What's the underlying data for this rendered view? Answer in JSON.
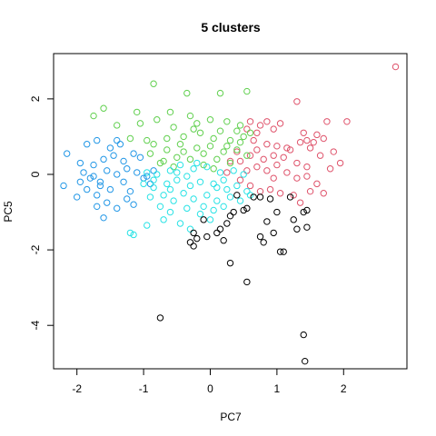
{
  "chart_data": {
    "type": "scatter",
    "title": "5  clusters",
    "xlabel": "PC7",
    "ylabel": "PC5",
    "xlim": [
      -2.35,
      2.95
    ],
    "ylim": [
      -5.15,
      3.2
    ],
    "xticks": [
      -2,
      -1,
      0,
      1,
      2
    ],
    "yticks": [
      -4,
      -2,
      0,
      2
    ],
    "grid": false,
    "legend": "none",
    "marker": "open-circle",
    "series": [
      {
        "color": "#df536b",
        "points": [
          [
            2.78,
            2.85
          ],
          [
            2.05,
            1.4
          ],
          [
            1.75,
            1.4
          ],
          [
            1.3,
            1.93
          ],
          [
            1.45,
            0.9
          ],
          [
            1.6,
            1.05
          ],
          [
            1.4,
            1.1
          ],
          [
            1.05,
            1.35
          ],
          [
            0.95,
            1.2
          ],
          [
            0.85,
            1.4
          ],
          [
            0.75,
            1.3
          ],
          [
            0.6,
            1.4
          ],
          [
            0.55,
            1.2
          ],
          [
            0.7,
            1.1
          ],
          [
            0.85,
            0.8
          ],
          [
            1.0,
            0.75
          ],
          [
            1.2,
            0.65
          ],
          [
            1.35,
            0.85
          ],
          [
            1.5,
            0.7
          ],
          [
            1.7,
            0.95
          ],
          [
            1.85,
            0.6
          ],
          [
            1.95,
            0.3
          ],
          [
            1.65,
            0.5
          ],
          [
            1.45,
            0.2
          ],
          [
            1.3,
            0.3
          ],
          [
            1.1,
            0.45
          ],
          [
            0.95,
            0.5
          ],
          [
            0.8,
            0.4
          ],
          [
            0.7,
            0.65
          ],
          [
            0.6,
            0.5
          ],
          [
            0.45,
            0.35
          ],
          [
            0.3,
            0.35
          ],
          [
            0.4,
            0.6
          ],
          [
            0.55,
            0.1
          ],
          [
            0.7,
            0.2
          ],
          [
            0.85,
            0.1
          ],
          [
            1.0,
            0.25
          ],
          [
            1.15,
            0.05
          ],
          [
            1.3,
            -0.1
          ],
          [
            1.45,
            -0.05
          ],
          [
            1.6,
            -0.25
          ],
          [
            1.7,
            -0.5
          ],
          [
            1.5,
            -0.45
          ],
          [
            1.25,
            -0.55
          ],
          [
            1.05,
            -0.5
          ],
          [
            0.9,
            -0.4
          ],
          [
            0.75,
            -0.45
          ],
          [
            0.6,
            -0.3
          ],
          [
            0.45,
            -0.15
          ],
          [
            1.35,
            -0.75
          ],
          [
            1.15,
            0.7
          ],
          [
            0.65,
            0.9
          ],
          [
            0.25,
            0.05
          ],
          [
            1.8,
            0.15
          ],
          [
            1.55,
            0.85
          ],
          [
            0.95,
            -0.1
          ]
        ]
      },
      {
        "color": "#61d04f",
        "points": [
          [
            -0.85,
            2.4
          ],
          [
            -0.35,
            2.15
          ],
          [
            0.15,
            2.15
          ],
          [
            0.55,
            2.2
          ],
          [
            -1.6,
            1.75
          ],
          [
            -1.75,
            1.55
          ],
          [
            -1.1,
            1.65
          ],
          [
            -0.6,
            1.65
          ],
          [
            -1.4,
            1.3
          ],
          [
            -1.05,
            1.35
          ],
          [
            -0.8,
            1.45
          ],
          [
            -0.55,
            1.25
          ],
          [
            -0.3,
            1.55
          ],
          [
            -0.2,
            1.35
          ],
          [
            0.0,
            1.45
          ],
          [
            0.25,
            1.4
          ],
          [
            0.45,
            1.3
          ],
          [
            0.6,
            1.1
          ],
          [
            -0.95,
            0.9
          ],
          [
            -0.65,
            0.95
          ],
          [
            -0.4,
            1.0
          ],
          [
            -0.15,
            1.1
          ],
          [
            0.05,
            0.95
          ],
          [
            0.3,
            0.9
          ],
          [
            0.45,
            0.85
          ],
          [
            -0.9,
            0.55
          ],
          [
            -0.65,
            0.65
          ],
          [
            -0.45,
            0.8
          ],
          [
            -0.2,
            0.7
          ],
          [
            0.0,
            0.75
          ],
          [
            0.2,
            0.6
          ],
          [
            0.4,
            0.65
          ],
          [
            -0.7,
            0.35
          ],
          [
            -0.5,
            0.45
          ],
          [
            -0.3,
            0.4
          ],
          [
            -0.1,
            0.55
          ],
          [
            0.1,
            0.4
          ],
          [
            0.3,
            0.3
          ],
          [
            -0.85,
            0.8
          ],
          [
            -0.75,
            0.3
          ],
          [
            -0.25,
            1.2
          ],
          [
            0.15,
            1.15
          ],
          [
            -0.55,
            0.2
          ],
          [
            0.4,
            1.15
          ],
          [
            -0.1,
            0.25
          ],
          [
            0.25,
            0.75
          ],
          [
            -1.2,
            0.95
          ],
          [
            0.55,
            0.5
          ],
          [
            -0.4,
            0.6
          ],
          [
            0.05,
            0.15
          ],
          [
            0.5,
            1.0
          ]
        ]
      },
      {
        "color": "#2297e6",
        "points": [
          [
            -2.15,
            0.55
          ],
          [
            -1.95,
            0.3
          ],
          [
            -1.85,
            0.8
          ],
          [
            -1.7,
            0.9
          ],
          [
            -1.4,
            0.9
          ],
          [
            -1.35,
            0.8
          ],
          [
            -1.9,
            0.05
          ],
          [
            -1.75,
            0.25
          ],
          [
            -1.6,
            0.4
          ],
          [
            -1.45,
            0.5
          ],
          [
            -1.3,
            0.35
          ],
          [
            -1.15,
            0.55
          ],
          [
            -1.05,
            0.45
          ],
          [
            -1.8,
            -0.1
          ],
          [
            -1.65,
            -0.2
          ],
          [
            -1.55,
            0.1
          ],
          [
            -1.4,
            0.0
          ],
          [
            -1.25,
            0.15
          ],
          [
            -1.1,
            0.05
          ],
          [
            -1.0,
            -0.1
          ],
          [
            -0.95,
            -0.05
          ],
          [
            -0.85,
            0.1
          ],
          [
            -2.2,
            -0.3
          ],
          [
            -2.0,
            -0.6
          ],
          [
            -1.85,
            -0.4
          ],
          [
            -1.7,
            -0.55
          ],
          [
            -1.55,
            -0.75
          ],
          [
            -1.4,
            -0.9
          ],
          [
            -1.25,
            -0.65
          ],
          [
            -1.15,
            -0.8
          ],
          [
            -1.65,
            -0.3
          ],
          [
            -1.5,
            -0.4
          ],
          [
            -1.3,
            -0.2
          ],
          [
            -1.6,
            -1.15
          ],
          [
            -1.95,
            -0.2
          ],
          [
            -1.2,
            -0.45
          ],
          [
            -1.75,
            -0.05
          ],
          [
            -0.9,
            -0.25
          ],
          [
            -1.5,
            0.7
          ],
          [
            -1.7,
            -0.85
          ]
        ]
      },
      {
        "color": "#28e2e5",
        "points": [
          [
            -0.95,
            0.05
          ],
          [
            -0.8,
            0.0
          ],
          [
            -0.6,
            0.1
          ],
          [
            -0.45,
            0.25
          ],
          [
            -0.25,
            0.15
          ],
          [
            -0.05,
            0.2
          ],
          [
            0.15,
            0.05
          ],
          [
            0.35,
            0.1
          ],
          [
            0.5,
            0.0
          ],
          [
            -1.0,
            -0.25
          ],
          [
            -0.85,
            -0.35
          ],
          [
            -0.65,
            -0.25
          ],
          [
            -0.5,
            -0.15
          ],
          [
            -0.3,
            -0.3
          ],
          [
            -0.15,
            -0.2
          ],
          [
            0.05,
            -0.25
          ],
          [
            0.2,
            -0.15
          ],
          [
            0.4,
            -0.3
          ],
          [
            0.55,
            -0.45
          ],
          [
            -0.9,
            -0.6
          ],
          [
            -0.7,
            -0.55
          ],
          [
            -0.55,
            -0.7
          ],
          [
            -0.4,
            -0.5
          ],
          [
            -0.25,
            -0.65
          ],
          [
            -0.05,
            -0.55
          ],
          [
            0.1,
            -0.7
          ],
          [
            0.3,
            -0.6
          ],
          [
            -0.75,
            -0.85
          ],
          [
            -0.6,
            -1.0
          ],
          [
            -0.35,
            -0.9
          ],
          [
            -0.15,
            -1.05
          ],
          [
            0.05,
            -0.95
          ],
          [
            0.2,
            -0.85
          ],
          [
            -1.2,
            -1.55
          ],
          [
            -1.15,
            -1.6
          ],
          [
            -0.95,
            -1.35
          ],
          [
            -0.7,
            -1.2
          ],
          [
            -0.45,
            -1.3
          ],
          [
            -0.3,
            -1.45
          ],
          [
            0.0,
            -1.2
          ],
          [
            -0.85,
            -0.15
          ],
          [
            -0.2,
            0.3
          ],
          [
            0.25,
            -0.4
          ],
          [
            -0.6,
            -0.4
          ],
          [
            0.45,
            -0.7
          ],
          [
            -0.1,
            -0.85
          ],
          [
            -0.5,
            0.05
          ],
          [
            0.6,
            -0.55
          ],
          [
            -0.35,
            -0.05
          ],
          [
            0.1,
            -0.35
          ]
        ]
      },
      {
        "color": "#000000",
        "points": [
          [
            -0.75,
            -3.8
          ],
          [
            0.3,
            -2.35
          ],
          [
            0.55,
            -2.85
          ],
          [
            1.4,
            -4.25
          ],
          [
            1.42,
            -4.95
          ],
          [
            1.05,
            -2.05
          ],
          [
            1.1,
            -2.05
          ],
          [
            0.8,
            -1.8
          ],
          [
            0.75,
            -1.65
          ],
          [
            0.95,
            -1.55
          ],
          [
            1.3,
            -1.45
          ],
          [
            1.45,
            -1.4
          ],
          [
            1.4,
            -1.0
          ],
          [
            1.45,
            -0.95
          ],
          [
            1.25,
            -1.2
          ],
          [
            1.0,
            -1.0
          ],
          [
            0.9,
            -0.65
          ],
          [
            0.75,
            -0.6
          ],
          [
            0.65,
            -0.6
          ],
          [
            0.55,
            -0.9
          ],
          [
            0.5,
            -0.95
          ],
          [
            0.35,
            -1.0
          ],
          [
            0.3,
            -1.1
          ],
          [
            0.25,
            -1.3
          ],
          [
            0.15,
            -1.45
          ],
          [
            0.1,
            -1.55
          ],
          [
            -0.05,
            -1.65
          ],
          [
            -0.25,
            -1.55
          ],
          [
            -0.3,
            -1.8
          ],
          [
            -0.25,
            -1.9
          ],
          [
            -0.1,
            -1.2
          ],
          [
            0.4,
            -0.55
          ],
          [
            1.2,
            -0.6
          ],
          [
            -0.2,
            -1.7
          ],
          [
            0.85,
            -1.25
          ],
          [
            0.2,
            -1.75
          ]
        ]
      }
    ]
  }
}
